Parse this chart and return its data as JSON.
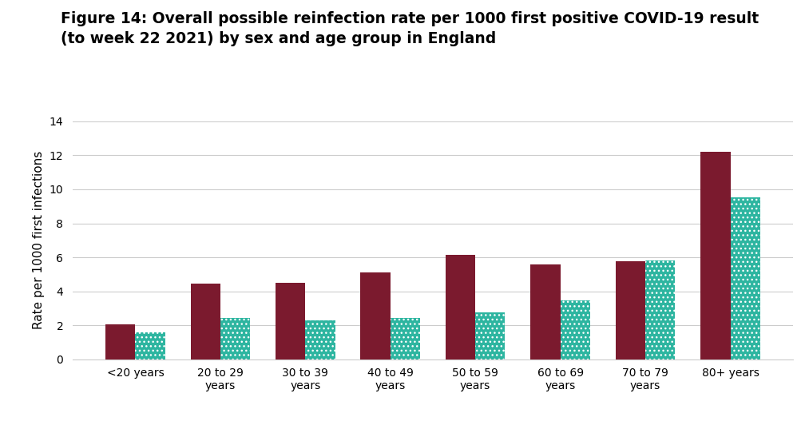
{
  "title_line1": "Figure 14: Overall possible reinfection rate per 1000 first positive COVID-19 result",
  "title_line2": "(to week 22 2021) by sex and age group in England",
  "ylabel": "Rate per 1000 first infections",
  "categories": [
    "<20 years",
    "20 to 29\nyears",
    "30 to 39\nyears",
    "40 to 49\nyears",
    "50 to 59\nyears",
    "60 to 69\nyears",
    "70 to 79\nyears",
    "80+ years"
  ],
  "male_values": [
    2.05,
    4.45,
    4.5,
    5.1,
    6.15,
    5.6,
    5.75,
    12.2
  ],
  "female_values": [
    1.6,
    2.45,
    2.3,
    2.45,
    2.75,
    3.45,
    5.8,
    9.55
  ],
  "male_color": "#7B1A2E",
  "female_color": "#2DB5A0",
  "ylim": [
    0,
    14
  ],
  "yticks": [
    0,
    2,
    4,
    6,
    8,
    10,
    12,
    14
  ],
  "background_color": "#ffffff",
  "title_fontsize": 13.5,
  "axis_fontsize": 11,
  "tick_fontsize": 10,
  "bar_width": 0.35,
  "grid_color": "#cccccc",
  "grid_linewidth": 0.8
}
